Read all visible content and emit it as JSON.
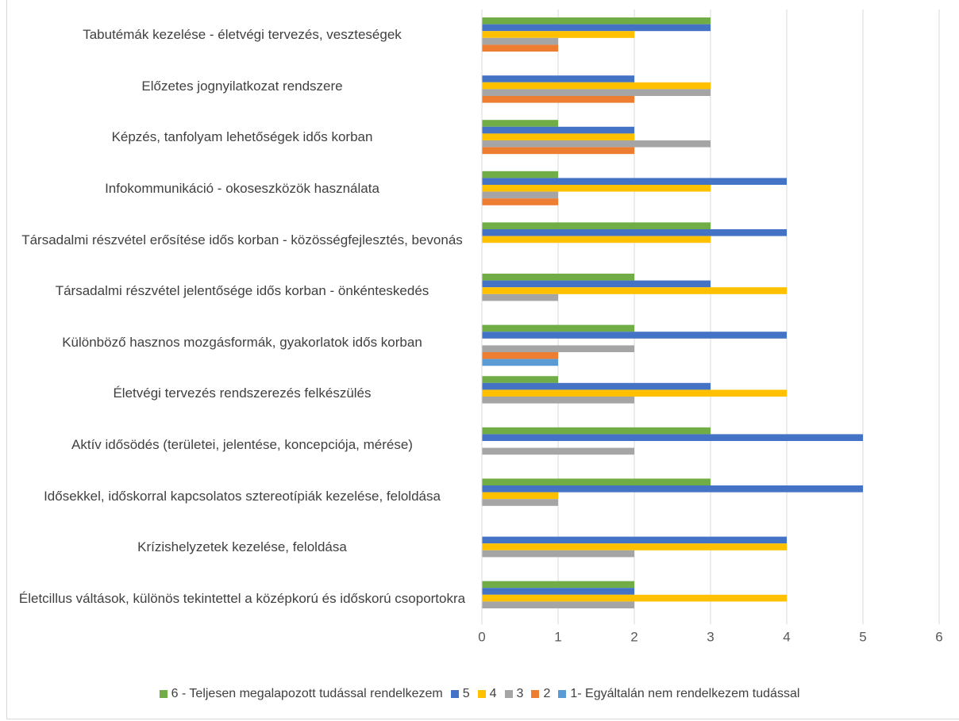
{
  "chart_data": {
    "type": "hbar",
    "categories": [
      "Tabutémák kezelése - életvégi tervezés, veszteségek",
      "Előzetes jognyilatkozat rendszere",
      "Képzés, tanfolyam lehetőségek idős korban",
      "Infokommunikáció - okoseszközök használata",
      "Társadalmi részvétel erősítése idős korban - közösségfejlesztés, bevonás",
      "Társadalmi részvétel jelentősége idős korban - önkénteskedés",
      "Különböző hasznos mozgásformák, gyakorlatok idős korban",
      "Életvégi tervezés rendszerezés felkészülés",
      "Aktív idősödés (területei, jelentése, koncepciója, mérése)",
      "Idősekkel, időskorral kapcsolatos sztereotípiák kezelése, feloldása",
      "Krízishelyzetek kezelése, feloldása",
      "Életcillus váltások, különös tekintettel a középkorú és időskorú csoportokra"
    ],
    "series": [
      {
        "name": "6 - Teljesen megalapozott tudással rendelkezem",
        "color": "#70ad47",
        "values": [
          3,
          0,
          1,
          1,
          3,
          2,
          2,
          1,
          3,
          3,
          0,
          2
        ]
      },
      {
        "name": "5",
        "color": "#4472c4",
        "values": [
          3,
          2,
          2,
          4,
          4,
          3,
          4,
          3,
          5,
          5,
          4,
          2
        ]
      },
      {
        "name": "4",
        "color": "#ffc000",
        "values": [
          2,
          3,
          2,
          3,
          3,
          4,
          0,
          4,
          0,
          1,
          4,
          4
        ]
      },
      {
        "name": "3",
        "color": "#a5a5a5",
        "values": [
          1,
          3,
          3,
          1,
          0,
          1,
          2,
          2,
          2,
          1,
          2,
          2
        ]
      },
      {
        "name": "2",
        "color": "#ed7d31",
        "values": [
          1,
          2,
          2,
          1,
          0,
          0,
          1,
          0,
          0,
          0,
          0,
          0
        ]
      },
      {
        "name": "1- Egyáltalán nem rendelkezem tudással",
        "color": "#5b9bd5",
        "values": [
          0,
          0,
          0,
          0,
          0,
          0,
          1,
          0,
          0,
          0,
          0,
          0
        ]
      }
    ],
    "xlim": [
      0,
      6
    ],
    "xticks": [
      0,
      1,
      2,
      3,
      4,
      5,
      6
    ],
    "grid": true,
    "legend": "bottom"
  }
}
